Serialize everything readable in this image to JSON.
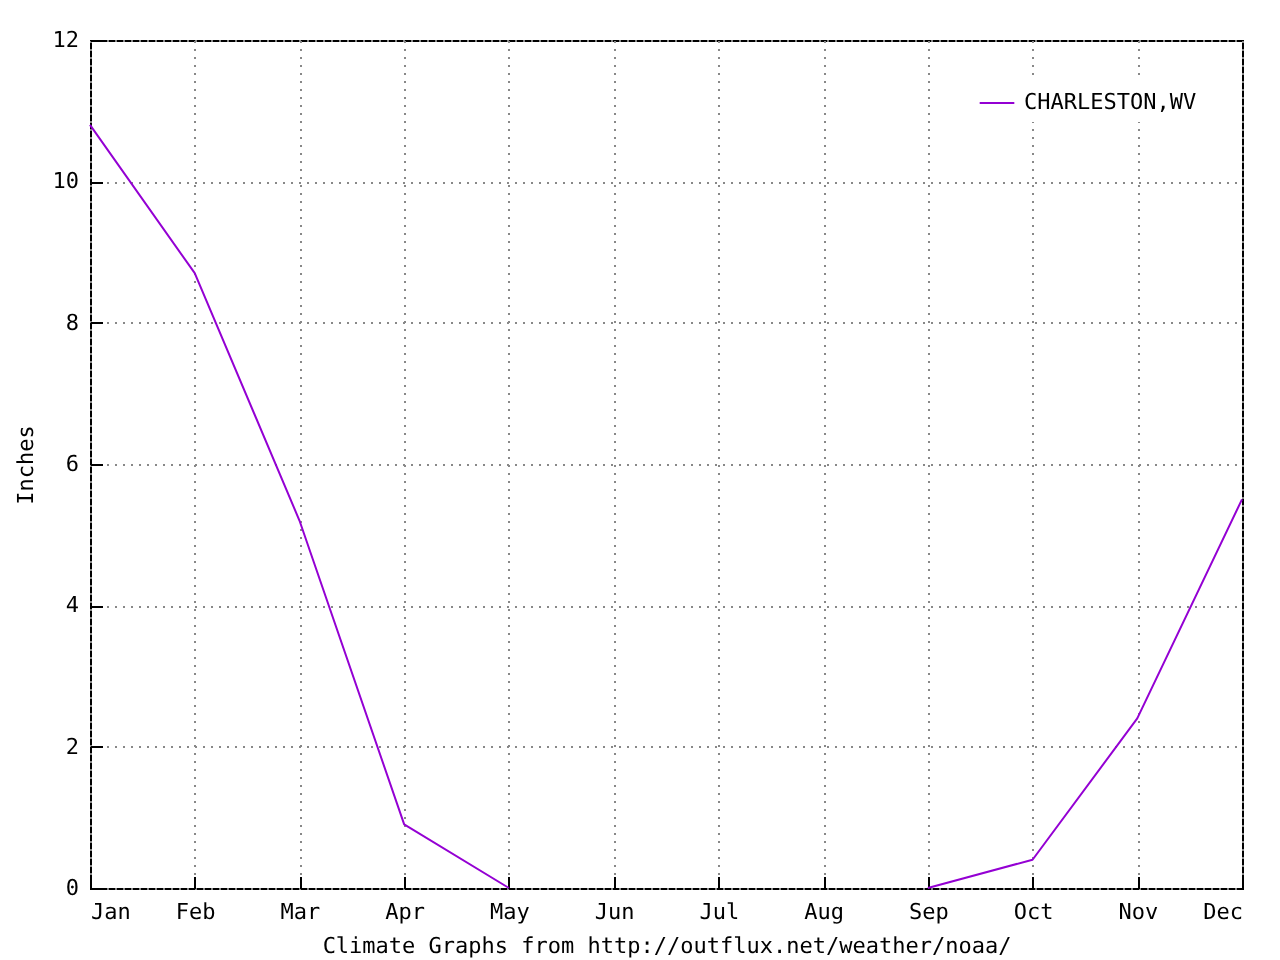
{
  "chart_data": {
    "type": "line",
    "xlabel": "Climate Graphs from http://outflux.net/weather/noaa/",
    "ylabel": "Inches",
    "categories": [
      "Jan",
      "Feb",
      "Mar",
      "Apr",
      "May",
      "Jun",
      "Jul",
      "Aug",
      "Sep",
      "Oct",
      "Nov",
      "Dec"
    ],
    "series": [
      {
        "name": "CHARLESTON,WV",
        "color": "#9400d3",
        "values": [
          10.8,
          8.7,
          5.2,
          0.9,
          0,
          null,
          null,
          null,
          0,
          0.4,
          2.4,
          5.5
        ]
      }
    ],
    "ylim": [
      0,
      12
    ],
    "yticks": [
      0,
      2,
      4,
      6,
      8,
      10,
      12
    ],
    "grid": true,
    "legend": "top right",
    "marker": "none",
    "line_style": "solid"
  }
}
